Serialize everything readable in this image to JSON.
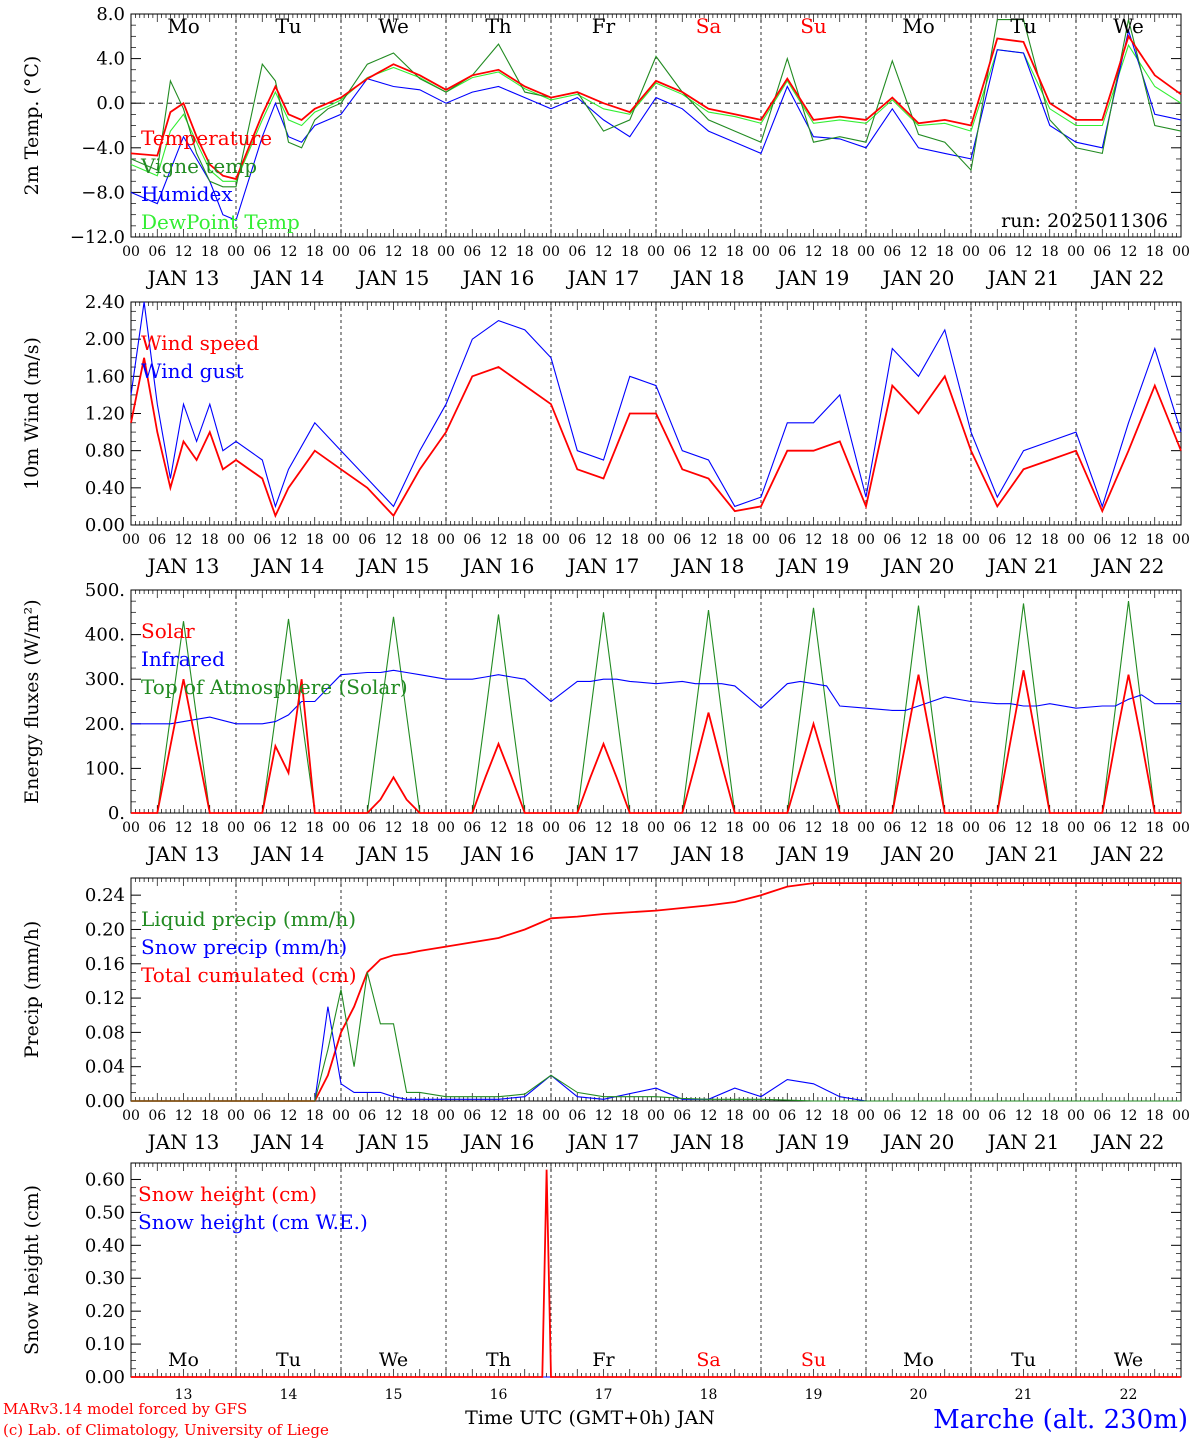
{
  "colors": {
    "red": "#ff0000",
    "green": "#228b22",
    "blue": "#0000ff",
    "lightgreen": "#33ee33",
    "axis": "#000000"
  },
  "days": [
    "Mo",
    "Tu",
    "We",
    "Th",
    "Fr",
    "Sa",
    "Su",
    "Mo",
    "Tu",
    "We"
  ],
  "weekend_days": [
    "Sa",
    "Su"
  ],
  "date_labels": [
    "JAN 13",
    "JAN 14",
    "JAN 15",
    "JAN 16",
    "JAN 17",
    "JAN 18",
    "JAN 19",
    "JAN 20",
    "JAN 21",
    "JAN 22"
  ],
  "hour_labels": [
    "00",
    "06",
    "12",
    "18"
  ],
  "day_numbers": [
    "13",
    "14",
    "15",
    "16",
    "17",
    "18",
    "19",
    "20",
    "21",
    "22"
  ],
  "run_label": "run: 2025011306",
  "footer": {
    "model": "MARv3.14 model forced by GFS",
    "lab": "(c) Lab. of Climatology, University of Liege",
    "xlabel": "Time UTC (GMT+0h) JAN",
    "station": "Marche (alt. 230m)"
  },
  "chart_data": [
    {
      "type": "line",
      "id": "temp",
      "ylabel": "2m Temp. (°C)",
      "ylim": [
        -12,
        8
      ],
      "yticks": [
        8,
        4,
        0,
        -4,
        -8,
        -12
      ],
      "ytick_labels": [
        "8.0",
        "4.0",
        "0.0",
        "−4.0",
        "−8.0",
        "−12.0"
      ],
      "x_hours": [
        0,
        6,
        9,
        12,
        15,
        18,
        21,
        24,
        30,
        33,
        36,
        39,
        42,
        45,
        48,
        54,
        60,
        66,
        72,
        78,
        84,
        90,
        96,
        102,
        108,
        114,
        120,
        126,
        132,
        138,
        144,
        150,
        156,
        162,
        168,
        174,
        180,
        186,
        192,
        198,
        204,
        210,
        216,
        222,
        228,
        234,
        240
      ],
      "series": [
        {
          "name": "Temperature",
          "color": "red",
          "values": [
            -4.5,
            -4.7,
            -0.8,
            0,
            -3,
            -5.5,
            -6.5,
            -6.8,
            -1,
            1.5,
            -1,
            -1.5,
            -0.5,
            0,
            0.5,
            2.2,
            3.5,
            2.5,
            1.2,
            2.5,
            3,
            1.5,
            0.5,
            1,
            0,
            -0.8,
            2,
            1,
            -0.5,
            -1,
            -1.5,
            2.2,
            -1.5,
            -1.2,
            -1.5,
            0.5,
            -1.8,
            -1.5,
            -2,
            5.8,
            5.5,
            0,
            -1.5,
            -1.5,
            6,
            2.5,
            0.8
          ]
        },
        {
          "name": "Vigne temp",
          "color": "green",
          "values": [
            -5,
            -6,
            2,
            -0.5,
            -4.5,
            -7,
            -7.5,
            -7.5,
            3.5,
            2,
            -3.5,
            -4,
            -1.5,
            -0.5,
            0,
            3.5,
            4.5,
            2.2,
            1,
            2.5,
            5.3,
            1,
            0.5,
            1,
            -2.5,
            -1.5,
            4.2,
            1,
            -1.5,
            -2.5,
            -3.5,
            4,
            -3.5,
            -3,
            -3.5,
            3.8,
            -2.8,
            -3.5,
            -6,
            7.5,
            7.5,
            -1.5,
            -4,
            -4.5,
            7.5,
            -2,
            -2.5
          ]
        },
        {
          "name": "Humidex",
          "color": "blue",
          "values": [
            -8,
            -9,
            -6,
            -3,
            -5,
            -7,
            -10,
            -10.5,
            -3,
            0,
            -3,
            -3.5,
            -2,
            -1.5,
            -1,
            2.2,
            1.5,
            1.2,
            0,
            1,
            1.5,
            0.5,
            -0.5,
            0.5,
            -1.5,
            -3,
            0.5,
            -0.5,
            -2.5,
            -3.5,
            -4.5,
            1.5,
            -3,
            -3.2,
            -4,
            -0.5,
            -4,
            -4.5,
            -5,
            4.8,
            4.5,
            -2,
            -3.5,
            -4,
            6.5,
            -1,
            -1.5
          ]
        },
        {
          "name": "DewPoint Temp",
          "color": "lightgreen",
          "values": [
            -5.5,
            -6.5,
            -2.5,
            -1,
            -3.5,
            -6,
            -7,
            -7,
            -1.5,
            1,
            -1.5,
            -2,
            -0.8,
            -0.3,
            0.3,
            2.3,
            3.2,
            2.3,
            1,
            2.3,
            2.8,
            1.3,
            0.3,
            0.8,
            -0.5,
            -1,
            1.8,
            0.8,
            -0.8,
            -1.2,
            -1.8,
            2,
            -1.8,
            -1.5,
            -1.8,
            0.3,
            -2,
            -1.8,
            -2.5,
            4.8,
            4.5,
            -0.5,
            -2,
            -2,
            5.2,
            1.5,
            0
          ]
        }
      ]
    },
    {
      "type": "line",
      "id": "wind",
      "ylabel": "10m Wind (m/s)",
      "ylim": [
        0,
        2.4
      ],
      "yticks": [
        0,
        0.4,
        0.8,
        1.2,
        1.6,
        2,
        2.4
      ],
      "ytick_labels": [
        "0.00",
        "0.40",
        "0.80",
        "1.20",
        "1.60",
        "2.00",
        "2.40"
      ],
      "x_hours": [
        0,
        3,
        6,
        9,
        12,
        15,
        18,
        21,
        24,
        30,
        33,
        36,
        42,
        48,
        54,
        60,
        66,
        72,
        78,
        84,
        90,
        96,
        102,
        108,
        114,
        120,
        126,
        132,
        138,
        144,
        150,
        156,
        162,
        168,
        174,
        180,
        186,
        192,
        198,
        204,
        210,
        216,
        222,
        228,
        234,
        240
      ],
      "series": [
        {
          "name": "Wind speed",
          "color": "red",
          "values": [
            1.1,
            1.8,
            1.0,
            0.4,
            0.9,
            0.7,
            1.0,
            0.6,
            0.7,
            0.5,
            0.1,
            0.4,
            0.8,
            0.6,
            0.4,
            0.1,
            0.6,
            1.0,
            1.6,
            1.7,
            1.5,
            1.3,
            0.6,
            0.5,
            1.2,
            1.2,
            0.6,
            0.5,
            0.15,
            0.2,
            0.8,
            0.8,
            0.9,
            0.2,
            1.5,
            1.2,
            1.6,
            0.8,
            0.2,
            0.6,
            0.7,
            0.8,
            0.15,
            0.8,
            1.5,
            0.8
          ]
        },
        {
          "name": "Wind gust",
          "color": "blue",
          "values": [
            1.4,
            2.4,
            1.3,
            0.5,
            1.3,
            0.9,
            1.3,
            0.8,
            0.9,
            0.7,
            0.2,
            0.6,
            1.1,
            0.8,
            0.5,
            0.2,
            0.8,
            1.3,
            2.0,
            2.2,
            2.1,
            1.8,
            0.8,
            0.7,
            1.6,
            1.5,
            0.8,
            0.7,
            0.2,
            0.3,
            1.1,
            1.1,
            1.4,
            0.3,
            1.9,
            1.6,
            2.1,
            1.0,
            0.3,
            0.8,
            0.9,
            1.0,
            0.2,
            1.1,
            1.9,
            1.0
          ]
        }
      ]
    },
    {
      "type": "line",
      "id": "energy",
      "ylabel": "Energy fluxes (W/m²)",
      "ylim": [
        0,
        500
      ],
      "yticks": [
        0,
        100,
        200,
        300,
        400,
        500
      ],
      "ytick_labels": [
        "0.",
        "100.",
        "200.",
        "300.",
        "400.",
        "500."
      ],
      "x_hours": [
        0,
        6,
        9,
        12,
        15,
        18,
        24,
        30,
        33,
        36,
        39,
        42,
        48,
        54,
        57,
        60,
        63,
        66,
        72,
        78,
        81,
        84,
        87,
        90,
        96,
        102,
        105,
        108,
        111,
        114,
        120,
        126,
        129,
        132,
        135,
        138,
        144,
        150,
        153,
        156,
        159,
        162,
        168,
        174,
        177,
        180,
        183,
        186,
        192,
        198,
        201,
        204,
        207,
        210,
        216,
        222,
        225,
        228,
        231,
        234,
        240
      ],
      "series": [
        {
          "name": "Solar",
          "color": "red",
          "values": [
            0,
            0,
            150,
            300,
            150,
            0,
            0,
            0,
            150,
            90,
            300,
            0,
            0,
            0,
            30,
            80,
            30,
            0,
            0,
            0,
            80,
            155,
            80,
            0,
            0,
            0,
            80,
            155,
            80,
            0,
            0,
            0,
            110,
            225,
            110,
            0,
            0,
            0,
            100,
            200,
            100,
            0,
            0,
            0,
            155,
            310,
            155,
            0,
            0,
            0,
            160,
            320,
            160,
            0,
            0,
            0,
            160,
            310,
            160,
            0,
            0
          ]
        },
        {
          "name": "Infrared",
          "color": "blue",
          "values": [
            200,
            200,
            200,
            205,
            210,
            215,
            200,
            200,
            205,
            220,
            250,
            250,
            310,
            315,
            315,
            320,
            315,
            310,
            300,
            300,
            305,
            310,
            305,
            300,
            250,
            295,
            295,
            300,
            300,
            295,
            290,
            295,
            290,
            290,
            290,
            285,
            235,
            290,
            295,
            290,
            285,
            240,
            235,
            230,
            230,
            240,
            250,
            260,
            250,
            245,
            245,
            240,
            240,
            245,
            235,
            240,
            240,
            255,
            265,
            245,
            245
          ]
        },
        {
          "name": "Top of Atmosphere (Solar)",
          "color": "green",
          "values": [
            0,
            0,
            215,
            430,
            215,
            0,
            0,
            0,
            215,
            435,
            215,
            0,
            0,
            0,
            220,
            440,
            220,
            0,
            0,
            0,
            220,
            445,
            220,
            0,
            0,
            0,
            225,
            450,
            225,
            0,
            0,
            0,
            225,
            455,
            225,
            0,
            0,
            0,
            230,
            460,
            230,
            0,
            0,
            0,
            230,
            465,
            230,
            0,
            0,
            0,
            235,
            470,
            235,
            0,
            0,
            0,
            235,
            475,
            235,
            0,
            0
          ]
        }
      ]
    },
    {
      "type": "line",
      "id": "precip",
      "ylabel": "Precip (mm/h)",
      "ylim": [
        0,
        0.26
      ],
      "yticks": [
        0,
        0.04,
        0.08,
        0.12,
        0.16,
        0.2,
        0.24
      ],
      "ytick_labels": [
        "0.00",
        "0.04",
        "0.08",
        "0.12",
        "0.16",
        "0.20",
        "0.24"
      ],
      "x_hours": [
        0,
        36,
        42,
        45,
        48,
        51,
        54,
        57,
        60,
        63,
        66,
        72,
        84,
        90,
        96,
        102,
        108,
        120,
        126,
        132,
        138,
        144,
        150,
        156,
        162,
        168,
        240
      ],
      "series": [
        {
          "name": "Liquid precip (mm/h)",
          "color": "green",
          "values": [
            0,
            0,
            0,
            0.06,
            0.13,
            0.04,
            0.15,
            0.09,
            0.09,
            0.01,
            0.01,
            0.005,
            0.005,
            0.008,
            0.03,
            0.01,
            0.005,
            0.005,
            0.003,
            0.002,
            0.002,
            0.002,
            0.001,
            0,
            0,
            0,
            0
          ]
        },
        {
          "name": "Snow precip (mm/h)",
          "color": "blue",
          "values": [
            0,
            0,
            0,
            0.11,
            0.02,
            0.01,
            0.01,
            0.01,
            0.005,
            0.002,
            0.002,
            0.002,
            0.002,
            0.005,
            0.03,
            0.005,
            0.002,
            0.015,
            0.002,
            0.002,
            0.015,
            0.005,
            0.025,
            0.02,
            0.005,
            0,
            0
          ]
        },
        {
          "name": "Total cumulated (cm)",
          "color": "red",
          "values": [
            0,
            0,
            0,
            0.03,
            0.08,
            0.11,
            0.15,
            0.165,
            0.17,
            0.172,
            0.175,
            0.18,
            0.19,
            0.2,
            0.213,
            0.215,
            0.218,
            0.222,
            0.225,
            0.228,
            0.232,
            0.24,
            0.25,
            0.254,
            0.254,
            0.254,
            0.254
          ]
        }
      ]
    },
    {
      "type": "line",
      "id": "snow",
      "ylabel": "Snow height (cm)",
      "ylim": [
        0,
        0.65
      ],
      "yticks": [
        0,
        0.1,
        0.2,
        0.3,
        0.4,
        0.5,
        0.6
      ],
      "ytick_labels": [
        "0.00",
        "0.10",
        "0.20",
        "0.30",
        "0.40",
        "0.50",
        "0.60"
      ],
      "x_hours": [
        0,
        93,
        94,
        95,
        96,
        97,
        240
      ],
      "series": [
        {
          "name": "Snow height (cm)",
          "color": "red",
          "values": [
            0,
            0,
            0,
            0.63,
            0,
            0,
            0
          ]
        },
        {
          "name": "Snow height (cm W.E.)",
          "color": "blue",
          "values": [
            0,
            0,
            0,
            0,
            0,
            0,
            0
          ]
        }
      ]
    }
  ]
}
